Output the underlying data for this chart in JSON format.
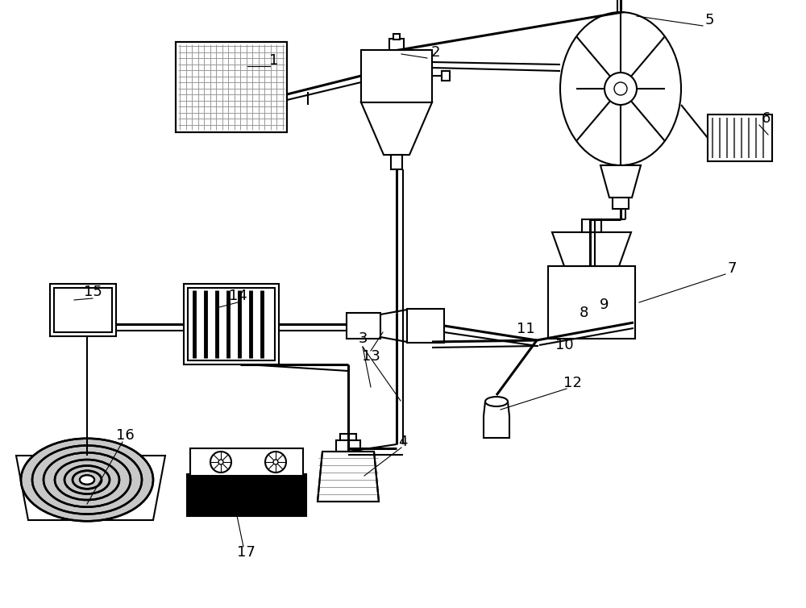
{
  "bg_color": "#ffffff",
  "line_color": "#000000",
  "lw": 1.5,
  "tlw": 2.2
}
